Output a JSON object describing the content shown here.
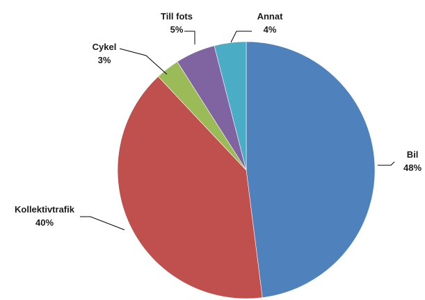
{
  "chart_data": {
    "type": "pie",
    "title": "",
    "start_angle_deg": 0,
    "direction": "clockwise",
    "slices": [
      {
        "label": "Bil",
        "value": 48,
        "value_label": "48%",
        "color": "#4f81bd"
      },
      {
        "label": "Kollektivtrafik",
        "value": 40,
        "value_label": "40%",
        "color": "#c0504d"
      },
      {
        "label": "Cykel",
        "value": 3,
        "value_label": "3%",
        "color": "#9bbb59"
      },
      {
        "label": "Till fots",
        "value": 5,
        "value_label": "5%",
        "color": "#8064a2"
      },
      {
        "label": "Annat",
        "value": 4,
        "value_label": "4%",
        "color": "#4bacc6"
      }
    ],
    "legend": "none",
    "labels": "outside-with-leader-lines"
  }
}
